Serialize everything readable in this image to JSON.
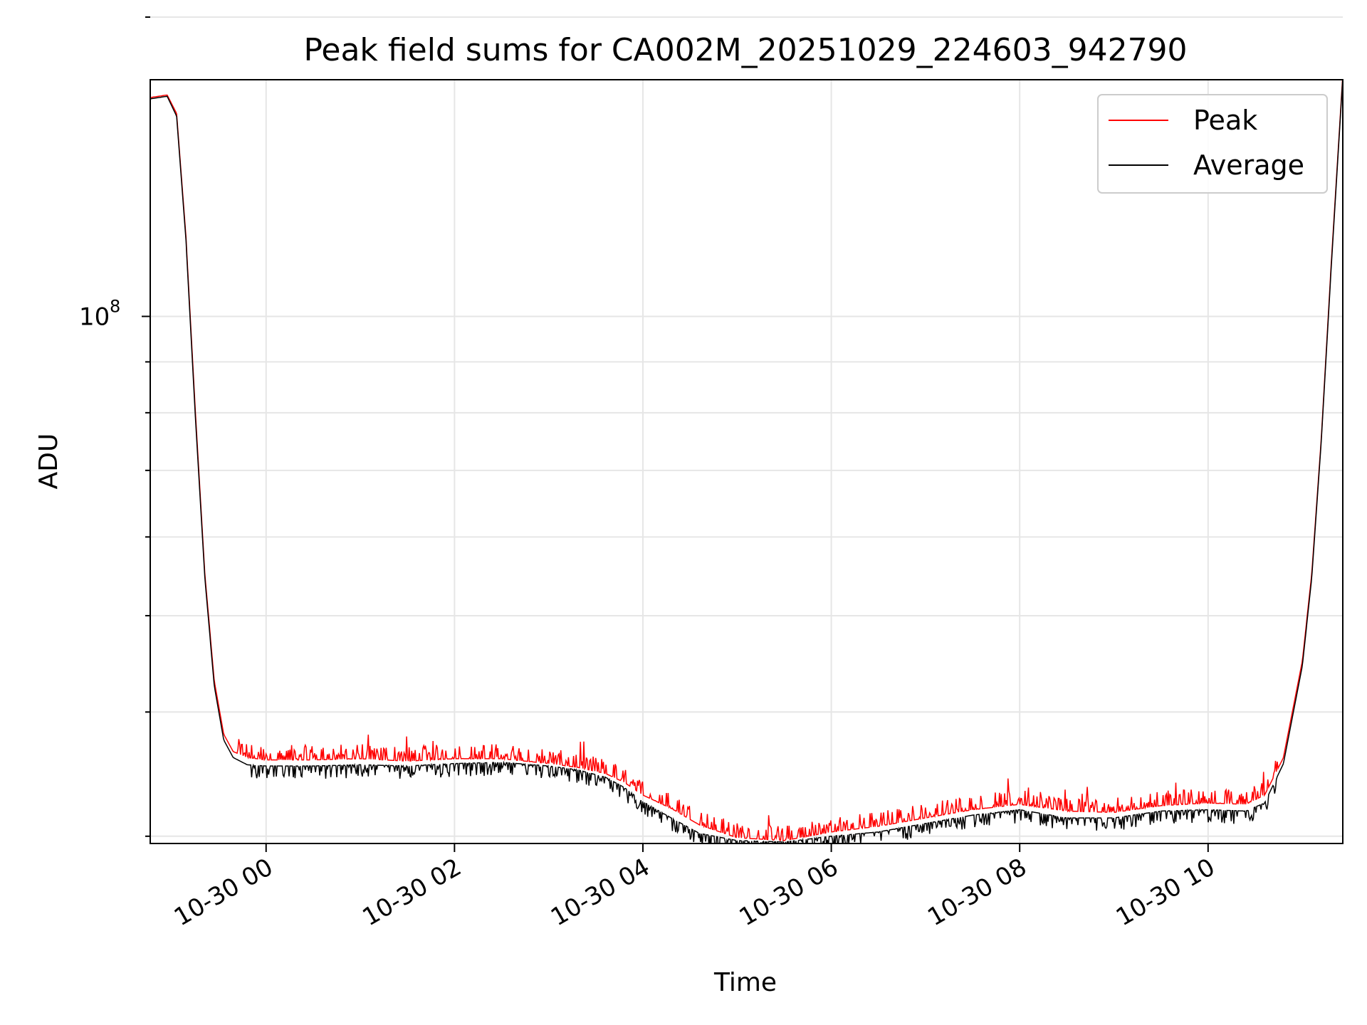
{
  "chart_data": {
    "type": "line",
    "title": "Peak field sums for CA002M_20251029_224603_942790",
    "xlabel": "Time",
    "ylabel": "ADU",
    "yscale": "log",
    "ylim": [
      29500000,
      173000000
    ],
    "xlim_hours": [
      -1.23,
      11.43
    ],
    "x_ticks": [
      {
        "hour": 0,
        "label": "10-30 00"
      },
      {
        "hour": 2,
        "label": "10-30 02"
      },
      {
        "hour": 4,
        "label": "10-30 04"
      },
      {
        "hour": 6,
        "label": "10-30 06"
      },
      {
        "hour": 8,
        "label": "10-30 08"
      },
      {
        "hour": 10,
        "label": "10-30 10"
      }
    ],
    "y_major_ticks": [
      {
        "value": 100000000,
        "base": "10",
        "exp": "8"
      }
    ],
    "y_minor_ticks": [
      30000000,
      40000000,
      50000000,
      60000000,
      70000000,
      80000000,
      90000000,
      200000000
    ],
    "grid": true,
    "legend": {
      "position": "top-right",
      "entries": [
        "Peak",
        "Average"
      ]
    },
    "series": [
      {
        "name": "Peak",
        "color": "#ff0000",
        "points": [
          [
            -1.23,
            166000000
          ],
          [
            -1.05,
            167000000
          ],
          [
            -0.95,
            160000000
          ],
          [
            -0.85,
            120000000
          ],
          [
            -0.75,
            80000000
          ],
          [
            -0.65,
            55000000
          ],
          [
            -0.55,
            43000000
          ],
          [
            -0.45,
            38000000
          ],
          [
            -0.35,
            36500000
          ],
          [
            -0.2,
            36000000
          ],
          [
            0,
            35800000
          ],
          [
            0.5,
            35800000
          ],
          [
            1.0,
            35900000
          ],
          [
            1.5,
            35700000
          ],
          [
            2.0,
            35900000
          ],
          [
            2.5,
            35900000
          ],
          [
            3.0,
            35500000
          ],
          [
            3.3,
            35200000
          ],
          [
            3.6,
            34700000
          ],
          [
            3.8,
            34000000
          ],
          [
            4.0,
            33000000
          ],
          [
            4.3,
            32000000
          ],
          [
            4.6,
            30800000
          ],
          [
            5.0,
            29900000
          ],
          [
            5.5,
            29700000
          ],
          [
            6.0,
            30300000
          ],
          [
            6.5,
            30700000
          ],
          [
            7.0,
            31300000
          ],
          [
            7.5,
            31900000
          ],
          [
            8.0,
            32300000
          ],
          [
            8.5,
            31800000
          ],
          [
            9.0,
            31700000
          ],
          [
            9.5,
            32200000
          ],
          [
            10.0,
            32400000
          ],
          [
            10.4,
            32300000
          ],
          [
            10.6,
            33000000
          ],
          [
            10.8,
            36000000
          ],
          [
            11.0,
            45000000
          ],
          [
            11.1,
            55000000
          ],
          [
            11.2,
            75000000
          ],
          [
            11.3,
            110000000
          ],
          [
            11.43,
            175000000
          ]
        ]
      },
      {
        "name": "Average",
        "color": "#000000",
        "points": [
          [
            -1.23,
            165500000
          ],
          [
            -1.05,
            166500000
          ],
          [
            -0.95,
            159000000
          ],
          [
            -0.85,
            119000000
          ],
          [
            -0.75,
            79000000
          ],
          [
            -0.65,
            54500000
          ],
          [
            -0.55,
            42500000
          ],
          [
            -0.45,
            37500000
          ],
          [
            -0.35,
            36000000
          ],
          [
            -0.2,
            35400000
          ],
          [
            0,
            35300000
          ],
          [
            0.5,
            35300000
          ],
          [
            1.0,
            35400000
          ],
          [
            1.5,
            35300000
          ],
          [
            2.0,
            35500000
          ],
          [
            2.5,
            35600000
          ],
          [
            3.0,
            35300000
          ],
          [
            3.3,
            35000000
          ],
          [
            3.6,
            34400000
          ],
          [
            3.8,
            33600000
          ],
          [
            4.0,
            32500000
          ],
          [
            4.3,
            31300000
          ],
          [
            4.6,
            30200000
          ],
          [
            5.0,
            29700000
          ],
          [
            5.5,
            29600000
          ],
          [
            6.0,
            30000000
          ],
          [
            6.5,
            30300000
          ],
          [
            7.0,
            30900000
          ],
          [
            7.5,
            31500000
          ],
          [
            8.0,
            31900000
          ],
          [
            8.5,
            31300000
          ],
          [
            9.0,
            31300000
          ],
          [
            9.5,
            31800000
          ],
          [
            10.0,
            31900000
          ],
          [
            10.4,
            31800000
          ],
          [
            10.6,
            32400000
          ],
          [
            10.8,
            35500000
          ],
          [
            11.0,
            44500000
          ],
          [
            11.1,
            54500000
          ],
          [
            11.2,
            74500000
          ],
          [
            11.3,
            109000000
          ],
          [
            11.43,
            174000000
          ]
        ]
      }
    ]
  }
}
